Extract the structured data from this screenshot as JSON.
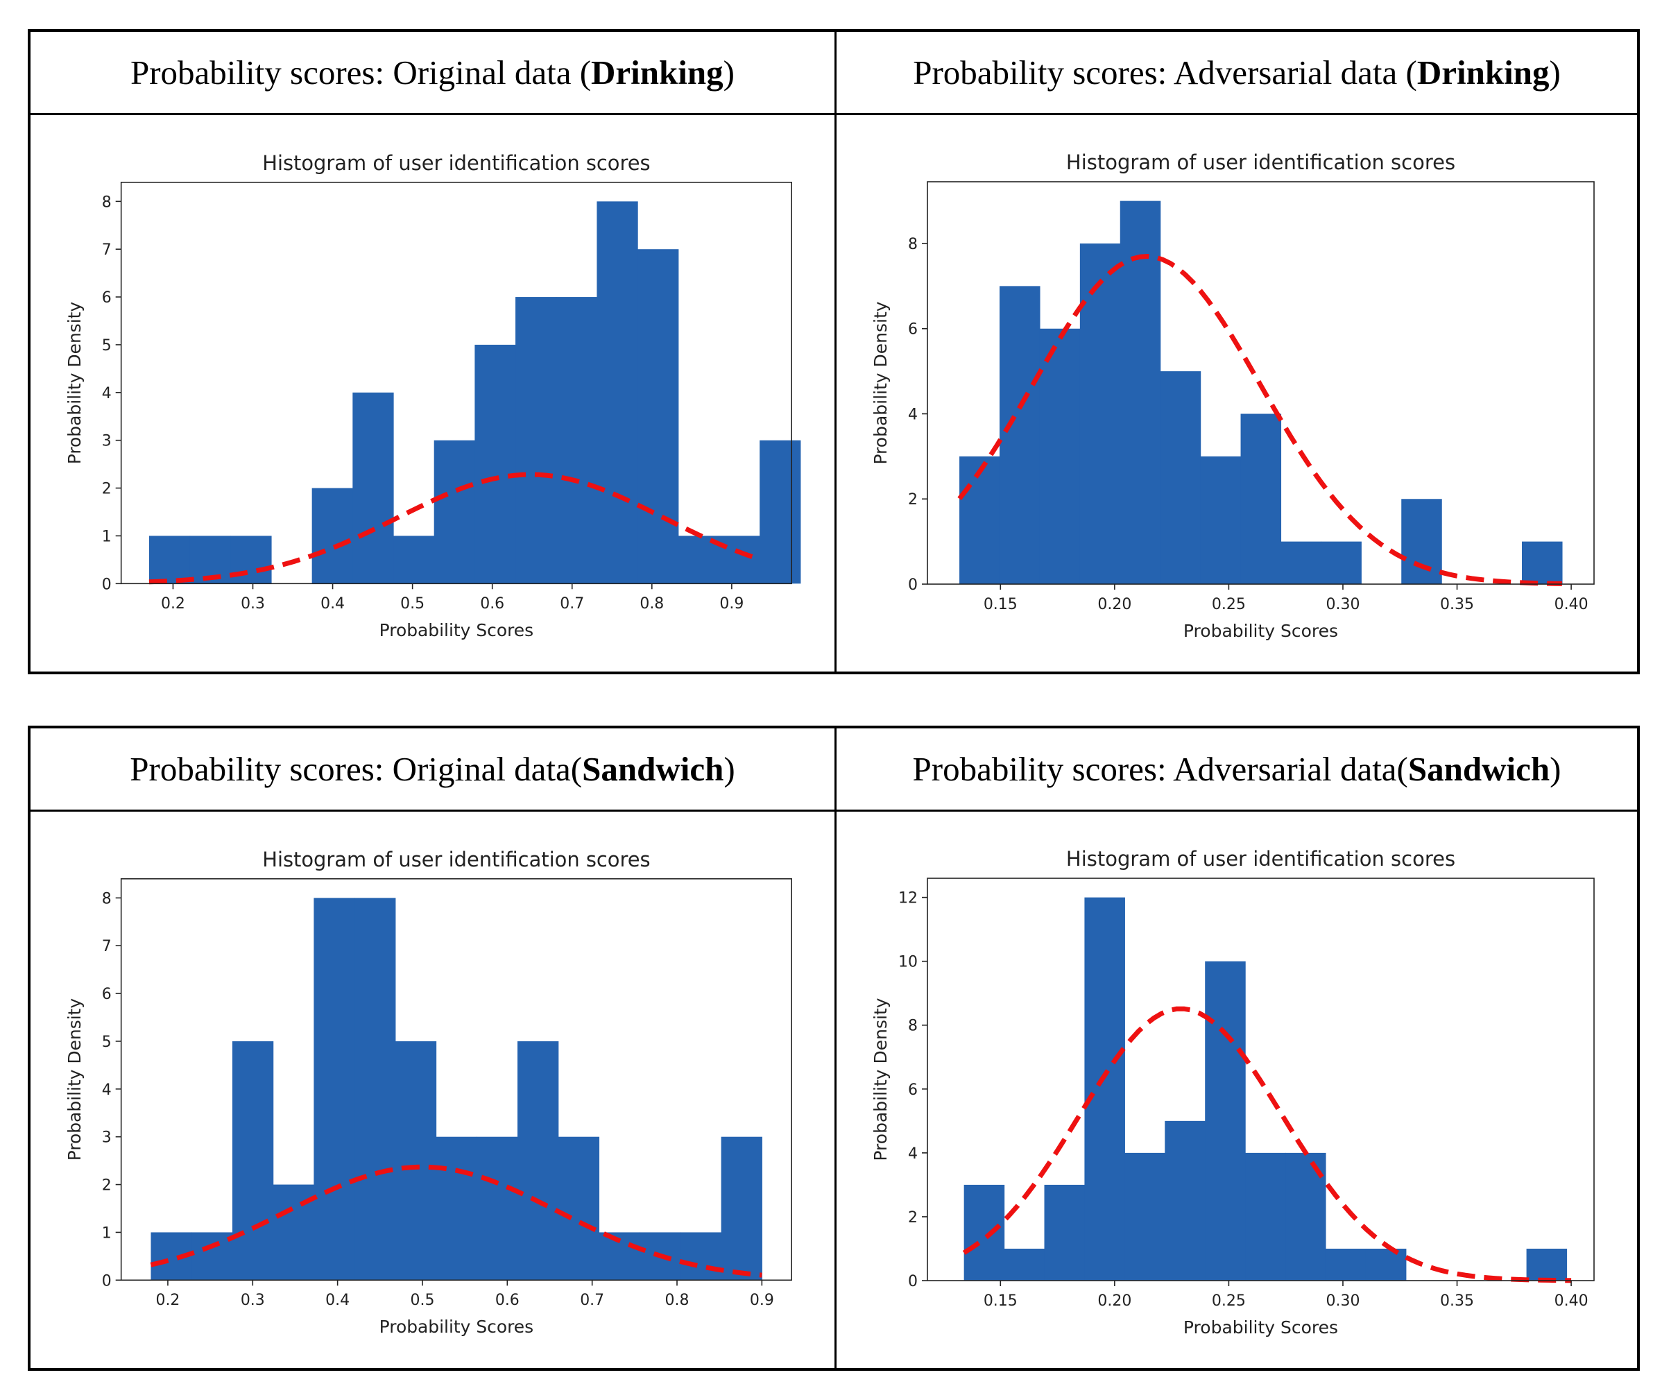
{
  "panels": [
    {
      "heading_prefix": "Probability scores: Original data (",
      "heading_bold": "Drinking",
      "heading_suffix": ")"
    },
    {
      "heading_prefix": "Probability scores: Adversarial data (",
      "heading_bold": "Drinking",
      "heading_suffix": ")"
    },
    {
      "heading_prefix": "Probability scores: Original data(",
      "heading_bold": "Sandwich",
      "heading_suffix": ")"
    },
    {
      "heading_prefix": "Probability scores: Adversarial data(",
      "heading_bold": "Sandwich",
      "heading_suffix": ")"
    }
  ],
  "colors": {
    "bar": "#2563b0",
    "curve": "#ee1111"
  },
  "chart_data": [
    {
      "type": "bar",
      "title": "Histogram of user identification scores",
      "xlabel": "Probability Scores",
      "ylabel": "Probability Density",
      "xlim": [
        0.135,
        0.975
      ],
      "ylim": [
        0,
        8.4
      ],
      "xticks": [
        "0.2",
        "0.3",
        "0.4",
        "0.5",
        "0.6",
        "0.7",
        "0.8",
        "0.9"
      ],
      "xtick_values": [
        0.2,
        0.3,
        0.4,
        0.5,
        0.6,
        0.7,
        0.8,
        0.9
      ],
      "yticks": [
        "0",
        "1",
        "2",
        "3",
        "4",
        "5",
        "6",
        "7",
        "8"
      ],
      "ytick_values": [
        0,
        1,
        2,
        3,
        4,
        5,
        6,
        7,
        8
      ],
      "bin_start": 0.17,
      "bin_width": 0.051,
      "values": [
        1,
        1,
        1,
        0,
        2,
        4,
        1,
        3,
        5,
        6,
        6,
        8,
        7,
        1,
        1,
        3
      ],
      "curve": {
        "mean": 0.648,
        "sd": 0.166,
        "scale": 0.95,
        "from": 0.17,
        "to": 0.935
      }
    },
    {
      "type": "bar",
      "title": "Histogram of user identification scores",
      "xlabel": "Probability Scores",
      "ylabel": "Probability Density",
      "xlim": [
        0.118,
        0.41
      ],
      "ylim": [
        0,
        9.45
      ],
      "xticks": [
        "0.15",
        "0.20",
        "0.25",
        "0.30",
        "0.35",
        "0.40"
      ],
      "xtick_values": [
        0.15,
        0.2,
        0.25,
        0.3,
        0.35,
        0.4
      ],
      "yticks": [
        "0",
        "2",
        "4",
        "6",
        "8"
      ],
      "ytick_values": [
        0,
        2,
        4,
        6,
        8
      ],
      "bin_start": 0.132,
      "bin_width": 0.0176,
      "values": [
        3,
        7,
        6,
        8,
        9,
        5,
        3,
        4,
        1,
        1,
        0,
        2,
        0,
        0,
        1
      ],
      "curve": {
        "mean": 0.214,
        "sd": 0.05,
        "scale": 0.965,
        "from": 0.132,
        "to": 0.396
      }
    },
    {
      "type": "bar",
      "title": "Histogram of user identification scores",
      "xlabel": "Probability Scores",
      "ylabel": "Probability Density",
      "xlim": [
        0.145,
        0.935
      ],
      "ylim": [
        0,
        8.4
      ],
      "xticks": [
        "0.2",
        "0.3",
        "0.4",
        "0.5",
        "0.6",
        "0.7",
        "0.8",
        "0.9"
      ],
      "xtick_values": [
        0.2,
        0.3,
        0.4,
        0.5,
        0.6,
        0.7,
        0.8,
        0.9
      ],
      "yticks": [
        "0",
        "1",
        "2",
        "3",
        "4",
        "5",
        "6",
        "7",
        "8"
      ],
      "ytick_values": [
        0,
        1,
        2,
        3,
        4,
        5,
        6,
        7,
        8
      ],
      "bin_start": 0.18,
      "bin_width": 0.048,
      "values": [
        1,
        1,
        5,
        2,
        8,
        8,
        5,
        3,
        3,
        5,
        3,
        1,
        1,
        1,
        3
      ],
      "curve": {
        "mean": 0.5,
        "sd": 0.16,
        "scale": 0.95,
        "from": 0.18,
        "to": 0.9
      }
    },
    {
      "type": "bar",
      "title": "Histogram of user identification scores",
      "xlabel": "Probability Scores",
      "ylabel": "Probability Density",
      "xlim": [
        0.118,
        0.41
      ],
      "ylim": [
        0,
        12.6
      ],
      "xticks": [
        "0.15",
        "0.20",
        "0.25",
        "0.30",
        "0.35",
        "0.40"
      ],
      "xtick_values": [
        0.15,
        0.2,
        0.25,
        0.3,
        0.35,
        0.4
      ],
      "yticks": [
        "0",
        "2",
        "4",
        "6",
        "8",
        "10",
        "12"
      ],
      "ytick_values": [
        0,
        2,
        4,
        6,
        8,
        10,
        12
      ],
      "bin_start": 0.134,
      "bin_width": 0.0176,
      "values": [
        3,
        1,
        3,
        12,
        4,
        5,
        10,
        4,
        4,
        1,
        1,
        0,
        0,
        0,
        1
      ],
      "curve": {
        "mean": 0.229,
        "sd": 0.0445,
        "scale": 0.95,
        "from": 0.134,
        "to": 0.4
      }
    }
  ]
}
